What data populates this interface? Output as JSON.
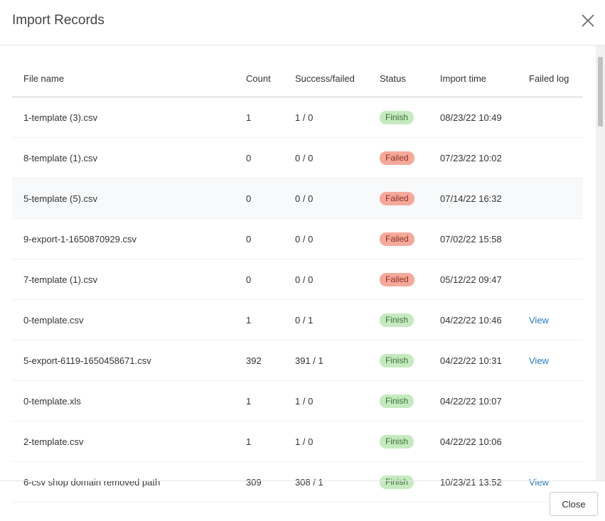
{
  "header": {
    "title": "Import Records"
  },
  "table": {
    "columns": [
      "File name",
      "Count",
      "Success/failed",
      "Status",
      "Import time",
      "Failed log"
    ],
    "rows": [
      {
        "file": "1-template (3).csv",
        "count": 1,
        "result": "1 / 0",
        "status": "Finish",
        "time": "08/23/22 10:49"
      },
      {
        "file": "8-template (1).csv",
        "count": 0,
        "result": "0 / 0",
        "status": "Failed",
        "time": "07/23/22 10:02"
      },
      {
        "file": "5-template (5).csv",
        "count": 0,
        "result": "0 / 0",
        "status": "Failed",
        "time": "07/14/22 16:32"
      },
      {
        "file": "9-export-1-1650870929.csv",
        "count": 0,
        "result": "0 / 0",
        "status": "Failed",
        "time": "07/02/22 15:58"
      },
      {
        "file": "7-template (1).csv",
        "count": 0,
        "result": "0 / 0",
        "status": "Failed",
        "time": "05/12/22 09:47"
      },
      {
        "file": "0-template.csv",
        "count": 1,
        "result": "0 / 1",
        "status": "Finish",
        "time": "04/22/22 10:46",
        "log": "View"
      },
      {
        "file": "5-export-6119-1650458671.csv",
        "count": 392,
        "result": "391 / 1",
        "status": "Finish",
        "time": "04/22/22 10:31",
        "log": "View"
      },
      {
        "file": "0-template.xls",
        "count": 1,
        "result": "1 / 0",
        "status": "Finish",
        "time": "04/22/22 10:07"
      },
      {
        "file": "2-template.csv",
        "count": 1,
        "result": "1 / 0",
        "status": "Finish",
        "time": "04/22/22 10:06"
      },
      {
        "file": "6-csv shop domain removed path",
        "count": 309,
        "result": "308 / 1",
        "status": "Finish",
        "time": "10/23/21 13:52",
        "log": "View"
      }
    ]
  },
  "footer": {
    "button": "Close"
  }
}
